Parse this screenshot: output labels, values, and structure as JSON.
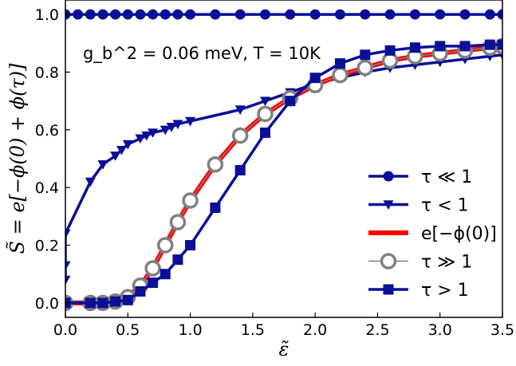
{
  "chart_data": {
    "type": "line",
    "xlabel": "ε̃",
    "ylabel": "S̃ = e[−ϕ(0) + ϕ(τ)]",
    "xlim": [
      0.0,
      3.5
    ],
    "ylim": [
      -0.05,
      1.05
    ],
    "xticks": [
      "0.0",
      "0.5",
      "1.0",
      "1.5",
      "2.0",
      "2.5",
      "3.0",
      "3.5"
    ],
    "yticks": [
      "0.0",
      "0.2",
      "0.4",
      "0.6",
      "0.8",
      "1.0"
    ],
    "annotation": "g_b^2 = 0.06 meV, T = 10K",
    "legend_position": "lower-right",
    "colors": {
      "navy": "#0a0f96",
      "red": "#ff0000",
      "gray": "#808080"
    },
    "series": [
      {
        "name": "τ ≪ 1",
        "marker": "circle",
        "color": "#0a0f96",
        "x": [
          0.0,
          0.1,
          0.2,
          0.3,
          0.4,
          0.5,
          0.6,
          0.7,
          0.8,
          0.9,
          1.0,
          1.2,
          1.4,
          1.6,
          1.8,
          2.0,
          2.2,
          2.4,
          2.6,
          2.8,
          3.0,
          3.2,
          3.4,
          3.5
        ],
        "y": [
          1.0,
          1.0,
          1.0,
          1.0,
          1.0,
          1.0,
          1.0,
          1.0,
          1.0,
          1.0,
          1.0,
          1.0,
          1.0,
          1.0,
          1.0,
          1.0,
          1.0,
          1.0,
          1.0,
          1.0,
          1.0,
          1.0,
          1.0,
          1.0
        ]
      },
      {
        "name": "τ < 1",
        "marker": "triangle-down",
        "color": "#0a0f96",
        "x": [
          0.0,
          0.0,
          0.0,
          0.2,
          0.3,
          0.4,
          0.45,
          0.5,
          0.6,
          0.65,
          0.7,
          0.8,
          0.85,
          0.9,
          1.0,
          1.4,
          1.6,
          1.8,
          2.0,
          2.2,
          2.4,
          2.6,
          2.8,
          3.0,
          3.2,
          3.4,
          3.5
        ],
        "y": [
          0.08,
          0.13,
          0.24,
          0.42,
          0.48,
          0.51,
          0.53,
          0.55,
          0.57,
          0.58,
          0.59,
          0.6,
          0.61,
          0.62,
          0.63,
          0.67,
          0.7,
          0.73,
          0.76,
          0.78,
          0.8,
          0.815,
          0.825,
          0.835,
          0.845,
          0.855,
          0.86
        ]
      },
      {
        "name": "e[−ϕ(0)]",
        "marker": "none",
        "color": "#ff0000",
        "x": [
          0.0,
          0.2,
          0.4,
          0.5,
          0.6,
          0.7,
          0.8,
          0.9,
          1.0,
          1.2,
          1.4,
          1.6,
          1.8,
          2.0,
          2.2,
          2.4,
          2.6,
          2.8,
          3.0,
          3.2,
          3.4,
          3.5
        ],
        "y": [
          0.0,
          0.0,
          0.005,
          0.02,
          0.06,
          0.12,
          0.2,
          0.28,
          0.355,
          0.48,
          0.58,
          0.655,
          0.71,
          0.755,
          0.79,
          0.815,
          0.84,
          0.855,
          0.865,
          0.875,
          0.885,
          0.89
        ]
      },
      {
        "name": "τ ≫ 1",
        "marker": "open-circle",
        "color": "#808080",
        "x": [
          0.0,
          0.2,
          0.3,
          0.4,
          0.5,
          0.6,
          0.7,
          0.8,
          0.9,
          1.0,
          1.2,
          1.4,
          1.6,
          1.8,
          2.0,
          2.2,
          2.4,
          2.6,
          2.8,
          3.0,
          3.2,
          3.4,
          3.5
        ],
        "y": [
          0.0,
          0.0,
          0.0,
          0.005,
          0.02,
          0.06,
          0.12,
          0.2,
          0.28,
          0.355,
          0.48,
          0.58,
          0.655,
          0.71,
          0.755,
          0.79,
          0.815,
          0.84,
          0.855,
          0.865,
          0.875,
          0.885,
          0.89
        ]
      },
      {
        "name": "τ > 1",
        "marker": "square",
        "color": "#0a0f96",
        "x": [
          0.0,
          0.2,
          0.3,
          0.4,
          0.5,
          0.6,
          0.7,
          0.8,
          0.9,
          1.0,
          1.2,
          1.4,
          1.6,
          1.8,
          2.0,
          2.2,
          2.4,
          2.6,
          2.8,
          3.0,
          3.2,
          3.4,
          3.5
        ],
        "y": [
          0.0,
          0.0,
          0.0,
          0.005,
          0.01,
          0.04,
          0.07,
          0.1,
          0.15,
          0.2,
          0.33,
          0.46,
          0.59,
          0.7,
          0.78,
          0.83,
          0.86,
          0.875,
          0.885,
          0.89,
          0.89,
          0.895,
          0.895
        ]
      }
    ]
  }
}
